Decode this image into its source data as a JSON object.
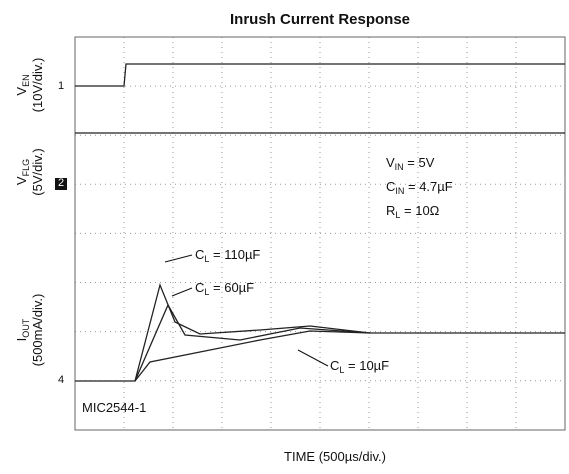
{
  "title": "Inrush Current Response",
  "x_axis_label": "TIME (500µs/div.)",
  "channels": [
    {
      "name": "V",
      "sub": "EN",
      "scale": "(10V/div.)",
      "marker": "1"
    },
    {
      "name": "V",
      "sub": "FLG",
      "scale": "(5V/div.)",
      "marker": "2"
    },
    {
      "name": "I",
      "sub": "OUT",
      "scale": "(500mA/div.)",
      "marker": "4"
    }
  ],
  "conditions": [
    {
      "name": "V",
      "sub": "IN",
      "text": " = 5V"
    },
    {
      "name": "C",
      "sub": "IN",
      "text": " = 4.7µF"
    },
    {
      "name": "R",
      "sub": "L",
      "text": " = 10Ω"
    }
  ],
  "curve_labels": [
    {
      "name": "C",
      "sub": "L",
      "text": " = 110µF"
    },
    {
      "name": "C",
      "sub": "L",
      "text": " = 60µF"
    },
    {
      "name": "C",
      "sub": "L",
      "text": " = 10µF"
    }
  ],
  "part_number": "MIC2544-1"
}
